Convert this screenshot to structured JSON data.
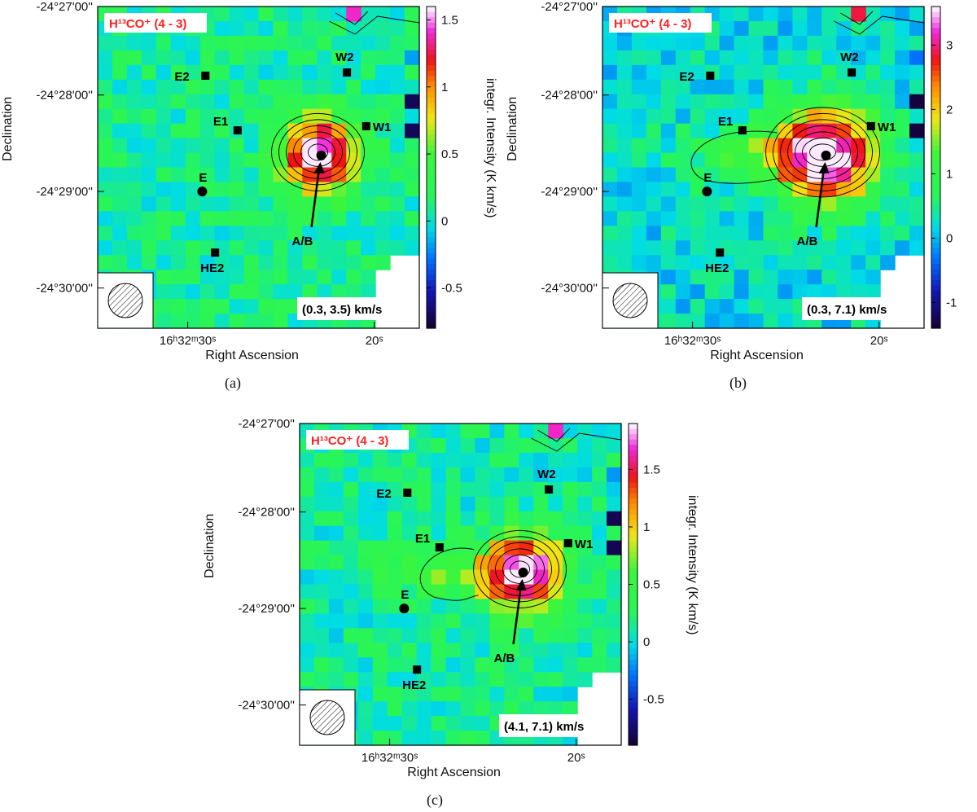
{
  "chart_data": [
    {
      "type": "heatmap",
      "panel_label": "(a)",
      "title": "H¹³CO⁺ (4 - 3)",
      "velocity_range": "(0.3, 3.5) km/s",
      "xlabel": "Right Ascension",
      "ylabel": "Declination",
      "colorbar_label": "integr. Intensity (K km/s)",
      "x_ticks": [
        "16ʰ32ᵐ30ˢ",
        "20ˢ"
      ],
      "y_ticks": [
        "-24°27'00''",
        "-24°28'00''",
        "-24°29'00''",
        "-24°30'00''"
      ],
      "colorbar_range": [
        -0.8,
        1.6
      ],
      "colorbar_ticks": [
        -0.5,
        0,
        0.5,
        1,
        1.5
      ],
      "peak_intensity": 1.6,
      "sources": [
        {
          "name": "E2",
          "marker": "square"
        },
        {
          "name": "W2",
          "marker": "square"
        },
        {
          "name": "E1",
          "marker": "square"
        },
        {
          "name": "W1",
          "marker": "square"
        },
        {
          "name": "E",
          "marker": "circle"
        },
        {
          "name": "HE2",
          "marker": "square"
        },
        {
          "name": "A/B",
          "marker": "circle"
        }
      ]
    },
    {
      "type": "heatmap",
      "panel_label": "(b)",
      "title": "H¹³CO⁺ (4 - 3)",
      "velocity_range": "(0.3, 7.1) km/s",
      "xlabel": "Right Ascension",
      "ylabel": "Declination",
      "colorbar_label": "integr. Intensity (K km/s)",
      "x_ticks": [
        "16ʰ32ᵐ30ˢ",
        "20ˢ"
      ],
      "y_ticks": [
        "-24°27'00''",
        "-24°28'00''",
        "-24°29'00''",
        "-24°30'00''"
      ],
      "colorbar_range": [
        -1.4,
        3.6
      ],
      "colorbar_ticks": [
        -1,
        0,
        1,
        2,
        3
      ],
      "peak_intensity": 3.6,
      "sources": [
        {
          "name": "E2",
          "marker": "square"
        },
        {
          "name": "W2",
          "marker": "square"
        },
        {
          "name": "E1",
          "marker": "square"
        },
        {
          "name": "W1",
          "marker": "square"
        },
        {
          "name": "E",
          "marker": "circle"
        },
        {
          "name": "HE2",
          "marker": "square"
        },
        {
          "name": "A/B",
          "marker": "circle"
        }
      ]
    },
    {
      "type": "heatmap",
      "panel_label": "(c)",
      "title": "H¹³CO⁺ (4 - 3)",
      "velocity_range": "(4.1, 7.1) km/s",
      "xlabel": "Right Ascension",
      "ylabel": "Declination",
      "colorbar_label": "integr. Intensity (K km/s)",
      "x_ticks": [
        "16ʰ32ᵐ30ˢ",
        "20ˢ"
      ],
      "y_ticks": [
        "-24°27'00''",
        "-24°28'00''",
        "-24°29'00''",
        "-24°30'00''"
      ],
      "colorbar_range": [
        -0.9,
        1.9
      ],
      "colorbar_ticks": [
        -0.5,
        0,
        0.5,
        1,
        1.5
      ],
      "peak_intensity": 1.9,
      "sources": [
        {
          "name": "E2",
          "marker": "square"
        },
        {
          "name": "W2",
          "marker": "square"
        },
        {
          "name": "E1",
          "marker": "square"
        },
        {
          "name": "W1",
          "marker": "square"
        },
        {
          "name": "E",
          "marker": "circle"
        },
        {
          "name": "HE2",
          "marker": "square"
        },
        {
          "name": "A/B",
          "marker": "circle"
        }
      ]
    }
  ],
  "colors": {
    "title_bg": "#ff2020",
    "map_base": "#2ef55a",
    "marker": "#000000"
  }
}
